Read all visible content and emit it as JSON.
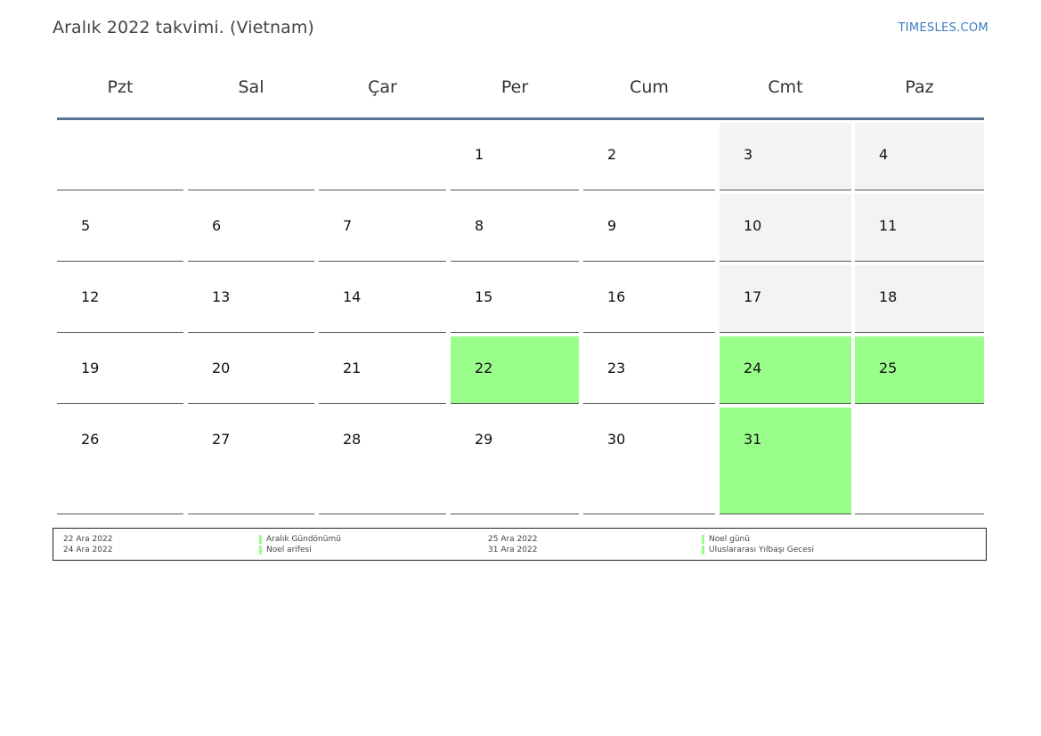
{
  "header": {
    "title": "Aralık 2022 takvimi. (Vietnam)",
    "brand": "TIMESLES.COM"
  },
  "weekdays": [
    "Pzt",
    "Sal",
    "Çar",
    "Per",
    "Cum",
    "Cmt",
    "Paz"
  ],
  "colors": {
    "holiday": "#9aff8a",
    "weekend": "#f3f3f3",
    "header_rule": "#5a7394",
    "brand": "#3a7bbf"
  },
  "calendar": {
    "weeks": [
      [
        null,
        null,
        null,
        1,
        2,
        3,
        4
      ],
      [
        5,
        6,
        7,
        8,
        9,
        10,
        11
      ],
      [
        12,
        13,
        14,
        15,
        16,
        17,
        18
      ],
      [
        19,
        20,
        21,
        22,
        23,
        24,
        25
      ],
      [
        26,
        27,
        28,
        29,
        30,
        31,
        null
      ]
    ],
    "holidays": [
      22,
      24,
      25,
      31
    ]
  },
  "legend": [
    {
      "date": "22 Ara 2022",
      "name": "Aralık Gündönümü"
    },
    {
      "date": "24 Ara 2022",
      "name": "Noel arifesi"
    },
    {
      "date": "25 Ara 2022",
      "name": "Noel günü"
    },
    {
      "date": "31 Ara 2022",
      "name": "Uluslararası Yılbaşı Gecesi"
    }
  ]
}
